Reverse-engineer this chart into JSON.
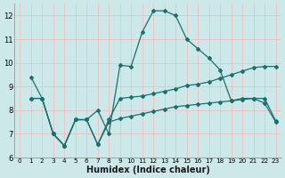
{
  "title": "",
  "xlabel": "Humidex (Indice chaleur)",
  "ylabel": "",
  "bg_color": "#cce8e8",
  "grid_color": "#f5b8b8",
  "line_color": "#1a7070",
  "xlim": [
    -0.5,
    23.5
  ],
  "ylim": [
    6,
    12.5
  ],
  "yticks": [
    6,
    7,
    8,
    9,
    10,
    11,
    12
  ],
  "xticks": [
    0,
    1,
    2,
    3,
    4,
    5,
    6,
    7,
    8,
    9,
    10,
    11,
    12,
    13,
    14,
    15,
    16,
    17,
    18,
    19,
    20,
    21,
    22,
    23
  ],
  "xtick_labels": [
    "0",
    "1",
    "2",
    "3",
    "4",
    "5",
    "6",
    "7",
    "8",
    "9",
    "10",
    "11",
    "12",
    "13",
    "14",
    "15",
    "16",
    "17",
    "18",
    "19",
    "20",
    "21",
    "22",
    "23"
  ],
  "line1_x": [
    1,
    2,
    3,
    4,
    5,
    6,
    7,
    8,
    9,
    10,
    11,
    12,
    13,
    14,
    15,
    16,
    17,
    18,
    19,
    20,
    21,
    22,
    23
  ],
  "line1_y": [
    9.4,
    8.5,
    7.0,
    6.5,
    7.6,
    7.6,
    8.0,
    7.0,
    9.9,
    9.85,
    11.3,
    12.2,
    12.2,
    12.0,
    11.0,
    10.6,
    10.2,
    9.7,
    8.4,
    8.5,
    8.5,
    8.3,
    7.5
  ],
  "line2_x": [
    1,
    2,
    3,
    4,
    5,
    6,
    7,
    8,
    9,
    10,
    11,
    12,
    13,
    14,
    15,
    16,
    17,
    18,
    19,
    20,
    21,
    22,
    23
  ],
  "line2_y": [
    8.5,
    8.5,
    7.0,
    6.5,
    7.6,
    7.6,
    6.55,
    7.6,
    8.5,
    8.55,
    8.6,
    8.7,
    8.8,
    8.9,
    9.05,
    9.1,
    9.2,
    9.35,
    9.5,
    9.65,
    9.8,
    9.85,
    9.85
  ],
  "line3_x": [
    1,
    2,
    3,
    4,
    5,
    6,
    7,
    8,
    9,
    10,
    11,
    12,
    13,
    14,
    15,
    16,
    17,
    18,
    19,
    20,
    21,
    22,
    23
  ],
  "line3_y": [
    8.5,
    8.5,
    7.0,
    6.5,
    7.6,
    7.6,
    6.55,
    7.5,
    7.65,
    7.75,
    7.85,
    7.95,
    8.05,
    8.15,
    8.2,
    8.25,
    8.3,
    8.35,
    8.4,
    8.45,
    8.5,
    8.5,
    7.55
  ]
}
